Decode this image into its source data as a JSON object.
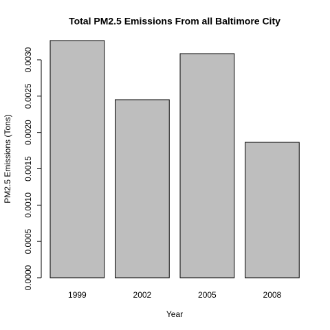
{
  "chart_data": {
    "type": "bar",
    "title": "Total PM2.5 Emissions From all Baltimore City",
    "x_label": "Year",
    "y_label": "PM2.5 Emissions (Tons)",
    "categories": [
      "1999",
      "2002",
      "2005",
      "2008"
    ],
    "values": [
      0.003265,
      0.002451,
      0.003085,
      0.001864
    ],
    "color": "#bebebe",
    "ylim": [
      0,
      0.003265
    ],
    "yticks": [
      {
        "value": 0,
        "label": "0.0000"
      },
      {
        "value": 0.0005,
        "label": "0.0005"
      },
      {
        "value": 0.001,
        "label": "0.0010"
      },
      {
        "value": 0.0015,
        "label": "0.0015"
      },
      {
        "value": 0.002,
        "label": "0.0020"
      },
      {
        "value": 0.0025,
        "label": "0.0025"
      },
      {
        "value": 0.003,
        "label": "0.0030"
      }
    ],
    "grid": false
  }
}
